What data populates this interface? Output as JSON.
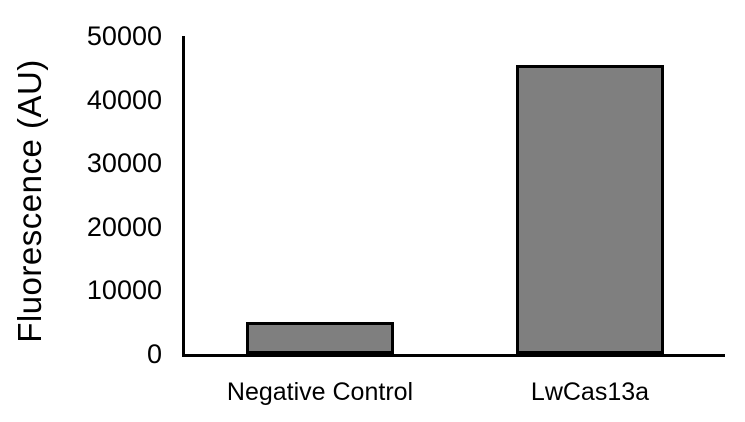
{
  "chart_data": {
    "type": "bar",
    "title": "",
    "categories": [
      "Negative Control",
      "LwCas13a"
    ],
    "values": [
      5000,
      45500
    ],
    "xlabel": "",
    "ylabel": "Fluorescence (AU)",
    "ylim": [
      0,
      50000
    ],
    "yticks": [
      0,
      10000,
      20000,
      30000,
      40000,
      50000
    ],
    "grid": false,
    "legend_position": "none",
    "bar_fill": "#7f7f7f",
    "bar_border": "#000000",
    "axis_color": "#000000",
    "text_color": "#000000",
    "background": "#ffffff"
  }
}
